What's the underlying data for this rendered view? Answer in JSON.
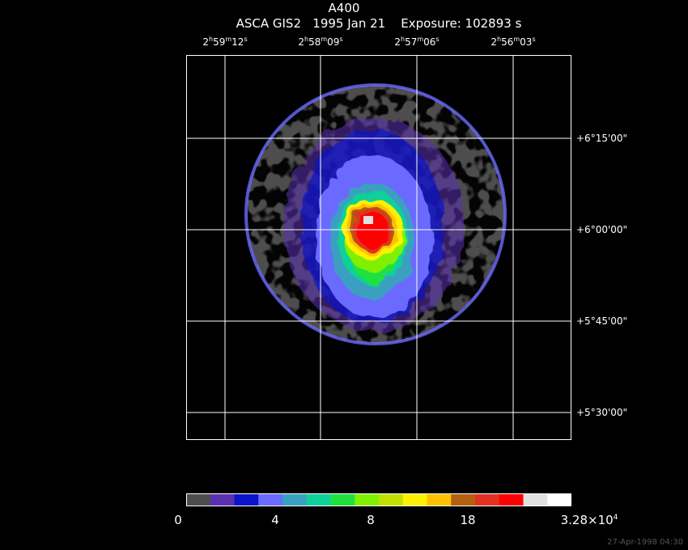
{
  "title": "A400",
  "subtitle": "ASCA GIS2   1995 Jan 21    Exposure: 102893 s",
  "ra_labels": [
    {
      "h": "2",
      "m": "59",
      "s": "12"
    },
    {
      "h": "2",
      "m": "58",
      "s": "09"
    },
    {
      "h": "2",
      "m": "57",
      "s": "06"
    },
    {
      "h": "2",
      "m": "56",
      "s": "03"
    }
  ],
  "dec_labels": [
    "+6°15'00\"",
    "+6°00'00\"",
    "+5°45'00\"",
    "+5°30'00\""
  ],
  "colorbar": {
    "colors": [
      "#4d4d4d",
      "#5a30b0",
      "#0a14c8",
      "#6a6aff",
      "#3aa0c0",
      "#10d09a",
      "#20e040",
      "#80f000",
      "#c0e000",
      "#fff000",
      "#ffc000",
      "#b06010",
      "#e03020",
      "#ff0000",
      "#e0e0e0",
      "#ffffff"
    ],
    "tick_labels": [
      "0",
      "4",
      "8",
      "18",
      "3.28×10"
    ],
    "tick_exponent": "4"
  },
  "timestamp": "27-Apr-1998 04:30"
}
